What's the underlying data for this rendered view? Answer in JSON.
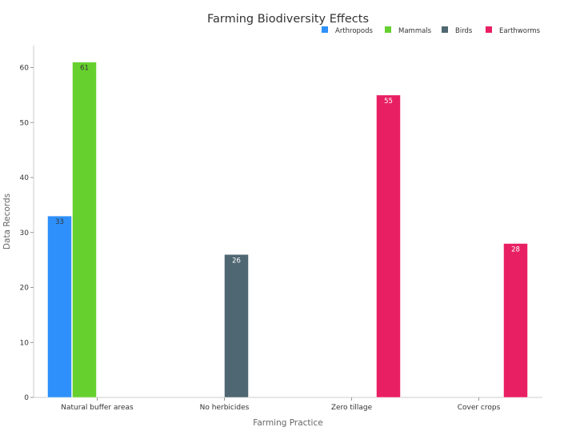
{
  "chart_data": {
    "type": "bar",
    "title": "Farming Biodiversity Effects",
    "xlabel": "Farming Practice",
    "ylabel": "Data Records",
    "categories": [
      "Natural buffer areas",
      "No herbicides",
      "Zero tillage",
      "Cover crops"
    ],
    "series": [
      {
        "name": "Arthropods",
        "color": "#2e90fa",
        "values": [
          33,
          null,
          null,
          null
        ]
      },
      {
        "name": "Mammals",
        "color": "#66d12e",
        "values": [
          61,
          null,
          null,
          null
        ]
      },
      {
        "name": "Birds",
        "color": "#4f6772",
        "values": [
          null,
          26,
          null,
          null
        ]
      },
      {
        "name": "Earthworms",
        "color": "#e82063",
        "values": [
          null,
          null,
          55,
          28
        ]
      }
    ],
    "ylim": [
      0,
      64
    ],
    "yticks": [
      0,
      10,
      20,
      30,
      40,
      50,
      60
    ],
    "legend_position": "top-right",
    "grid": false
  }
}
